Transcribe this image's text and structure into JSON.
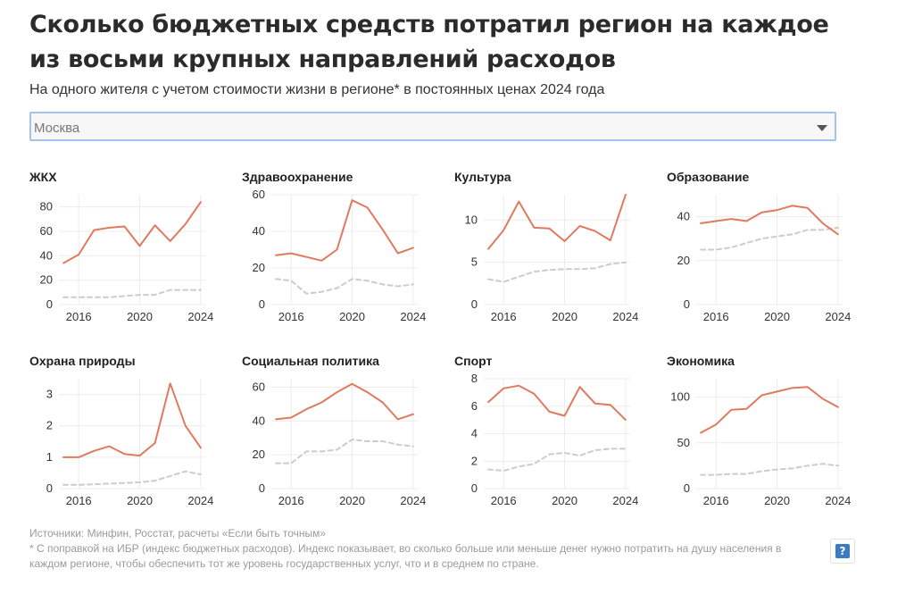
{
  "header": {
    "title": "Сколько бюджетных средств потратил регион на каждое из восьми крупных направлений расходов",
    "subtitle": "На одного жителя с учетом стоимости жизни в регионе* в постоянных ценах 2024 года"
  },
  "region_select": {
    "value": "Москва"
  },
  "colors": {
    "region": "#e07a5f",
    "average": "#cccccc",
    "grid": "#ececec"
  },
  "chart_data": [
    {
      "type": "line",
      "title": "ЖКХ",
      "x": [
        2015,
        2016,
        2017,
        2018,
        2019,
        2020,
        2021,
        2022,
        2023,
        2024
      ],
      "series": [
        {
          "values": [
            34,
            41,
            61,
            63,
            64,
            48,
            65,
            52,
            66,
            84
          ]
        },
        {
          "values": [
            6,
            6,
            6,
            6,
            7,
            8,
            8,
            12,
            12,
            12
          ]
        }
      ],
      "ylim": [
        0,
        90
      ],
      "yticks": [
        0,
        20,
        40,
        60,
        80
      ],
      "xticks": [
        2016,
        2020,
        2024
      ]
    },
    {
      "type": "line",
      "title": "Здравоохранение",
      "x": [
        2015,
        2016,
        2017,
        2018,
        2019,
        2020,
        2021,
        2022,
        2023,
        2024
      ],
      "series": [
        {
          "values": [
            27,
            28,
            26,
            24,
            30,
            57,
            53,
            41,
            28,
            31
          ]
        },
        {
          "values": [
            14,
            13,
            6,
            7,
            9,
            14,
            13,
            11,
            10,
            11
          ]
        }
      ],
      "ylim": [
        0,
        60
      ],
      "yticks": [
        0,
        20,
        40,
        60
      ],
      "xticks": [
        2016,
        2020,
        2024
      ]
    },
    {
      "type": "line",
      "title": "Культура",
      "x": [
        2015,
        2016,
        2017,
        2018,
        2019,
        2020,
        2021,
        2022,
        2023,
        2024
      ],
      "series": [
        {
          "values": [
            6.6,
            8.8,
            12.2,
            9.1,
            9.0,
            7.5,
            9.3,
            8.7,
            7.6,
            13.0
          ]
        },
        {
          "values": [
            3.0,
            2.7,
            3.3,
            3.9,
            4.1,
            4.2,
            4.2,
            4.3,
            4.8,
            5.0
          ]
        }
      ],
      "ylim": [
        0,
        13
      ],
      "yticks": [
        0,
        5,
        10
      ],
      "xticks": [
        2016,
        2020,
        2024
      ]
    },
    {
      "type": "line",
      "title": "Образование",
      "x": [
        2015,
        2016,
        2017,
        2018,
        2019,
        2020,
        2021,
        2022,
        2023,
        2024
      ],
      "series": [
        {
          "values": [
            37,
            38,
            39,
            38,
            42,
            43,
            45,
            44,
            37,
            32
          ]
        },
        {
          "values": [
            25,
            25,
            26,
            28,
            30,
            31,
            32,
            34,
            34,
            35
          ]
        }
      ],
      "ylim": [
        0,
        50
      ],
      "yticks": [
        0,
        20,
        40
      ],
      "xticks": [
        2016,
        2020,
        2024
      ]
    },
    {
      "type": "line",
      "title": "Охрана природы",
      "x": [
        2015,
        2016,
        2017,
        2018,
        2019,
        2020,
        2021,
        2022,
        2023,
        2024
      ],
      "series": [
        {
          "values": [
            1.0,
            1.0,
            1.2,
            1.35,
            1.1,
            1.05,
            1.45,
            3.35,
            2.0,
            1.3
          ]
        },
        {
          "values": [
            0.12,
            0.12,
            0.14,
            0.16,
            0.18,
            0.2,
            0.25,
            0.4,
            0.55,
            0.45
          ]
        }
      ],
      "ylim": [
        0,
        3.5
      ],
      "yticks": [
        0,
        1,
        2,
        3
      ],
      "xticks": [
        2016,
        2020,
        2024
      ]
    },
    {
      "type": "line",
      "title": "Социальная политика",
      "x": [
        2015,
        2016,
        2017,
        2018,
        2019,
        2020,
        2021,
        2022,
        2023,
        2024
      ],
      "series": [
        {
          "values": [
            41,
            42,
            47,
            51,
            57,
            62,
            57,
            51,
            41,
            44
          ]
        },
        {
          "values": [
            15,
            15,
            22,
            22,
            23,
            29,
            28,
            28,
            26,
            25
          ]
        }
      ],
      "ylim": [
        0,
        65
      ],
      "yticks": [
        0,
        20,
        40,
        60
      ],
      "xticks": [
        2016,
        2020,
        2024
      ]
    },
    {
      "type": "line",
      "title": "Спорт",
      "x": [
        2015,
        2016,
        2017,
        2018,
        2019,
        2020,
        2021,
        2022,
        2023,
        2024
      ],
      "series": [
        {
          "values": [
            6.3,
            7.3,
            7.5,
            6.9,
            5.6,
            5.3,
            7.4,
            6.2,
            6.1,
            5.0
          ]
        },
        {
          "values": [
            1.4,
            1.3,
            1.6,
            1.8,
            2.5,
            2.6,
            2.4,
            2.8,
            2.9,
            2.9
          ]
        }
      ],
      "ylim": [
        0,
        8
      ],
      "yticks": [
        0,
        2,
        4,
        6,
        8
      ],
      "xticks": [
        2016,
        2020,
        2024
      ]
    },
    {
      "type": "line",
      "title": "Экономика",
      "x": [
        2015,
        2016,
        2017,
        2018,
        2019,
        2020,
        2021,
        2022,
        2023,
        2024
      ],
      "series": [
        {
          "values": [
            61,
            70,
            86,
            87,
            102,
            106,
            110,
            111,
            98,
            89
          ]
        },
        {
          "values": [
            15,
            15,
            16,
            16,
            19,
            21,
            22,
            25,
            27,
            25
          ]
        }
      ],
      "ylim": [
        0,
        120
      ],
      "yticks": [
        0,
        50,
        100
      ],
      "xticks": [
        2016,
        2020,
        2024
      ]
    }
  ],
  "footer": {
    "sources": "Источники: Минфин, Росстат, расчеты «Если быть точным»",
    "note": "* С поправкой на ИБР (индекс бюджетных расходов). Индекс показывает, во сколько больше или меньше денег нужно потратить на душу населения в каждом регионе, чтобы обеспечить тот же уровень государственных услуг, что и в среднем по стране."
  },
  "help": {
    "label": "?"
  }
}
